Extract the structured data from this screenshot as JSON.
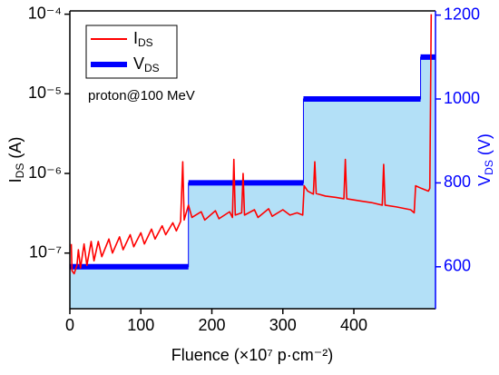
{
  "chart_data": {
    "type": "line",
    "xlabel": "Fluence (×10⁷ p·cm⁻²)",
    "ylabel": "IDS (A)",
    "y2label": "VDS (V)",
    "annotation": "proton@100 MeV",
    "legend": "upper left",
    "log_y": true,
    "xlim": [
      0,
      515
    ],
    "xticks": [
      0,
      100,
      200,
      300,
      400
    ],
    "ylim": [
      2e-08,
      0.00011
    ],
    "yticks": [
      {
        "value": 1e-07,
        "label": "10⁻⁷"
      },
      {
        "value": 1e-06,
        "label": "10⁻⁶"
      },
      {
        "value": 1e-05,
        "label": "10⁻⁵"
      },
      {
        "value": 0.0001,
        "label": "10⁻⁴"
      }
    ],
    "y2lim": [
      500,
      1210
    ],
    "y2ticks": [
      600,
      800,
      1000,
      1200
    ],
    "series": [
      {
        "name": "IDS",
        "color": "#ff0000",
        "x": [
          2,
          3,
          6,
          10,
          12,
          15,
          20,
          24,
          30,
          34,
          40,
          45,
          55,
          60,
          70,
          75,
          85,
          90,
          100,
          105,
          115,
          120,
          130,
          135,
          145,
          150,
          156,
          159,
          161,
          167,
          172,
          185,
          190,
          205,
          210,
          225,
          229,
          231,
          233,
          242,
          244,
          246,
          260,
          265,
          280,
          285,
          300,
          310,
          320,
          328,
          330,
          335,
          343,
          345,
          347,
          360,
          375,
          386,
          388,
          390,
          410,
          425,
          440,
          442,
          444,
          460,
          480,
          485,
          487,
          495,
          505,
          507,
          509
        ],
        "values": [
          1.3e-07,
          6e-08,
          5.5e-08,
          7e-08,
          1.1e-07,
          6.5e-08,
          1.3e-07,
          7e-08,
          1.4e-07,
          8e-08,
          1.4e-07,
          9e-08,
          1.5e-07,
          1e-07,
          1.6e-07,
          1.1e-07,
          1.7e-07,
          1.2e-07,
          1.8e-07,
          1.3e-07,
          2e-07,
          1.5e-07,
          2.2e-07,
          1.7e-07,
          2.4e-07,
          1.9e-07,
          2.5e-07,
          1.4e-06,
          2.6e-07,
          4e-07,
          2.8e-07,
          3.3e-07,
          2.6e-07,
          3.4e-07,
          2.7e-07,
          3.3e-07,
          2.8e-07,
          1.5e-06,
          3e-07,
          3.2e-07,
          1e-06,
          3e-07,
          3.5e-07,
          2.8e-07,
          3.6e-07,
          2.9e-07,
          3.5e-07,
          3e-07,
          3.2e-07,
          3e-07,
          7e-07,
          6e-07,
          5.5e-07,
          1.4e-06,
          5.6e-07,
          5.2e-07,
          5e-07,
          4.8e-07,
          1.5e-06,
          4.8e-07,
          4.5e-07,
          4.3e-07,
          4e-07,
          1.3e-06,
          4e-07,
          3.8e-07,
          3.5e-07,
          3.2e-07,
          7e-07,
          6.5e-07,
          6e-07,
          6.5e-07,
          0.0001
        ]
      },
      {
        "name": "VDS",
        "color": "#0000ff",
        "fill": "#b3e0f7",
        "axis": "y2",
        "step": true,
        "x": [
          0,
          167,
          167,
          329,
          329,
          494,
          494,
          515
        ],
        "values": [
          600,
          600,
          800,
          800,
          1000,
          1000,
          1100,
          1100
        ]
      }
    ]
  }
}
